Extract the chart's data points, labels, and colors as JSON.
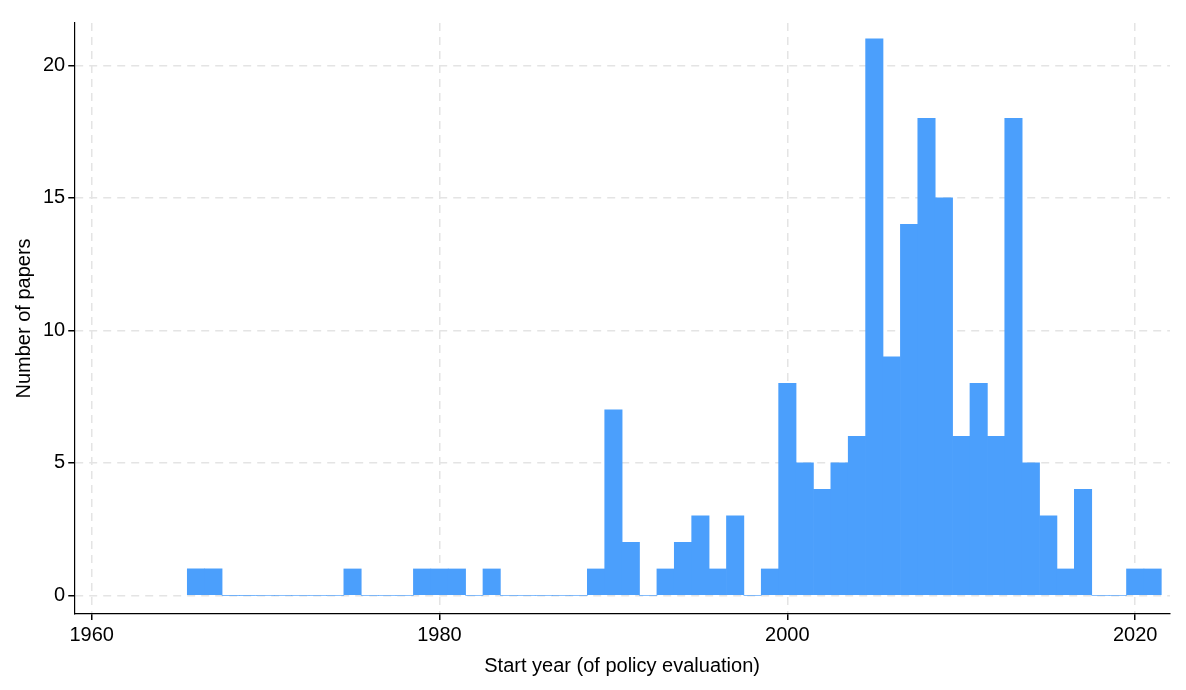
{
  "chart_data": {
    "type": "histogram",
    "xlabel": "Start year (of policy evaluation)",
    "ylabel": "Number of papers",
    "bins": [
      1965.5,
      1966.5,
      1967.5,
      1968.5,
      1969.5,
      1970.5,
      1971.5,
      1972.5,
      1973.5,
      1974.5,
      1975.5,
      1976.5,
      1977.5,
      1978.5,
      1979.5,
      1980.5,
      1981.5,
      1982.5,
      1983.5,
      1984.5,
      1985.5,
      1986.5,
      1987.5,
      1988.5,
      1989.5,
      1990.5,
      1991.5,
      1992.5,
      1993.5,
      1994.5,
      1995.5,
      1996.5,
      1997.5,
      1998.5,
      1999.5,
      2000.5,
      2001.5,
      2002.5,
      2003.5,
      2004.5,
      2005.5,
      2006.5,
      2007.5,
      2008.5,
      2009.5,
      2010.5,
      2011.5,
      2012.5,
      2013.5,
      2014.5,
      2015.5,
      2016.5,
      2017.5,
      2018.5,
      2019.5,
      2020.5,
      2021.5
    ],
    "values": [
      1,
      1,
      0,
      0,
      0,
      0,
      0,
      0,
      0,
      1,
      0,
      0,
      0,
      1,
      1,
      1,
      0,
      1,
      0,
      0,
      0,
      0,
      0,
      1,
      7,
      2,
      0,
      1,
      2,
      3,
      1,
      3,
      0,
      1,
      8,
      5,
      4,
      5,
      6,
      21,
      9,
      14,
      18,
      15,
      6,
      8,
      6,
      18,
      5,
      3,
      1,
      4,
      0,
      0,
      1,
      1
    ],
    "color": "#4b9ffc",
    "xlim": [
      1959,
      2022
    ],
    "xticks": [
      1960,
      1980,
      2000,
      2020
    ],
    "ylim": [
      -0.7,
      21.6
    ],
    "yticks": [
      0,
      5,
      10,
      15,
      20
    ],
    "grid": true,
    "legend": false
  }
}
